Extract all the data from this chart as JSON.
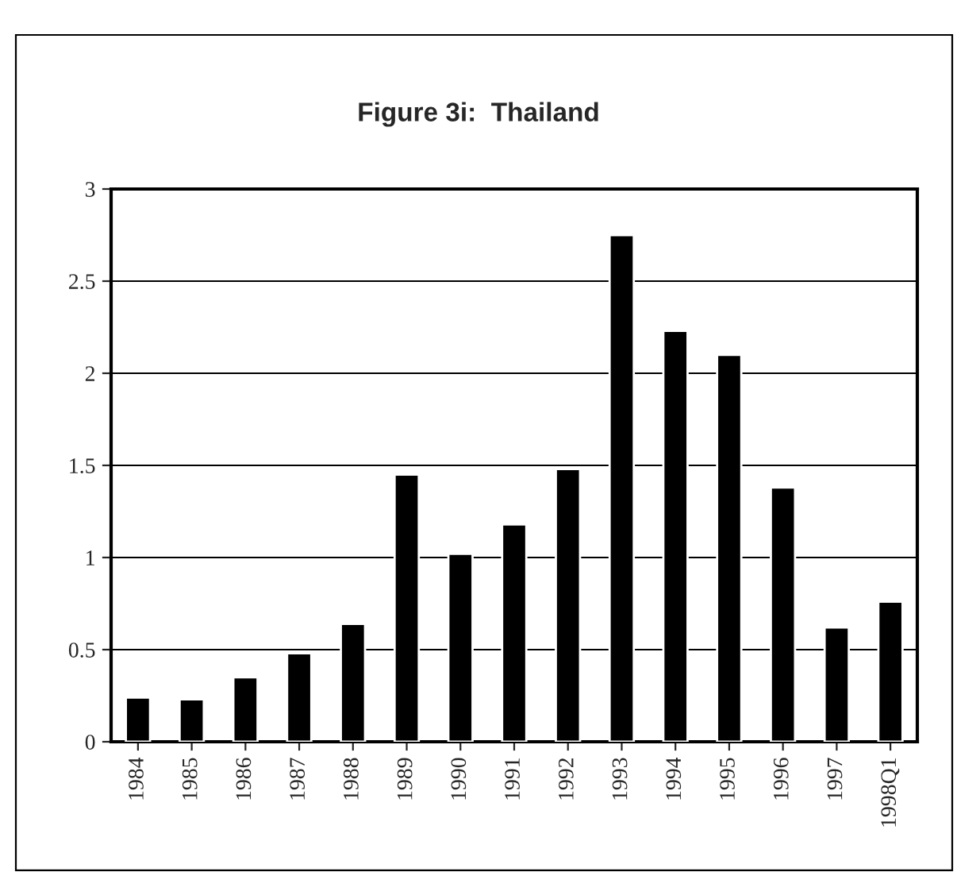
{
  "chart_data": {
    "type": "bar",
    "title": "Figure 3i:  Thailand",
    "categories": [
      "1984",
      "1985",
      "1986",
      "1987",
      "1988",
      "1989",
      "1990",
      "1991",
      "1992",
      "1993",
      "1994",
      "1995",
      "1996",
      "1997",
      "1998Q1"
    ],
    "values": [
      0.24,
      0.23,
      0.35,
      0.48,
      0.64,
      1.45,
      1.02,
      1.18,
      1.48,
      2.75,
      2.23,
      2.1,
      1.38,
      0.62,
      0.76
    ],
    "color": "#000000",
    "ylim": [
      0,
      3
    ],
    "yticks": [
      0,
      0.5,
      1,
      1.5,
      2,
      2.5,
      3
    ],
    "grid": "y"
  }
}
